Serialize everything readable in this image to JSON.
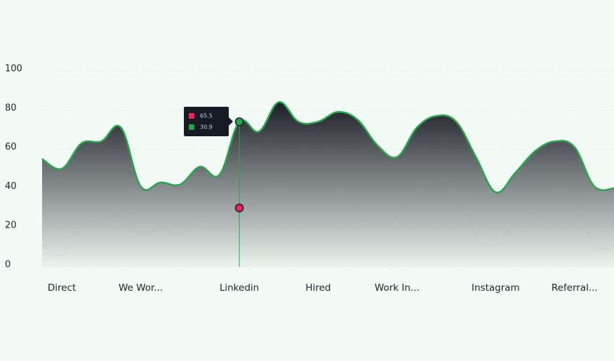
{
  "chart_data": {
    "type": "area",
    "categories": [
      null,
      "Direct",
      null,
      null,
      null,
      "We Wor...",
      null,
      null,
      null,
      null,
      "Linkedin",
      null,
      null,
      null,
      "Hired",
      null,
      null,
      null,
      "Work In...",
      null,
      null,
      null,
      null,
      "Instagram",
      null,
      null,
      null,
      "Referral...",
      null,
      null
    ],
    "series": [
      {
        "color": "#27a64a",
        "values": [
          54,
          49,
          62,
          63,
          70,
          40,
          42,
          41,
          50,
          46,
          73,
          68,
          83,
          73,
          73,
          78,
          74,
          61,
          55,
          70,
          76,
          73,
          55,
          37,
          47,
          58,
          63,
          60,
          40,
          39
        ]
      },
      {
        "color": "#e8265c",
        "values": [
          10,
          5,
          20,
          22,
          25,
          15,
          19,
          15,
          24,
          18,
          29,
          30,
          42,
          35,
          33,
          38,
          30,
          20,
          25,
          38,
          43,
          40,
          15,
          10,
          22,
          22,
          38,
          35,
          10,
          10
        ]
      }
    ],
    "ylim": [
      0,
      100
    ],
    "yticks": [
      0,
      20,
      40,
      60,
      80,
      100
    ],
    "grid": true,
    "tooltip": {
      "index": 10,
      "items": [
        {
          "color": "#f0245a",
          "value": 65.5
        },
        {
          "color": "#22a34a",
          "value": 30.9
        }
      ]
    }
  }
}
